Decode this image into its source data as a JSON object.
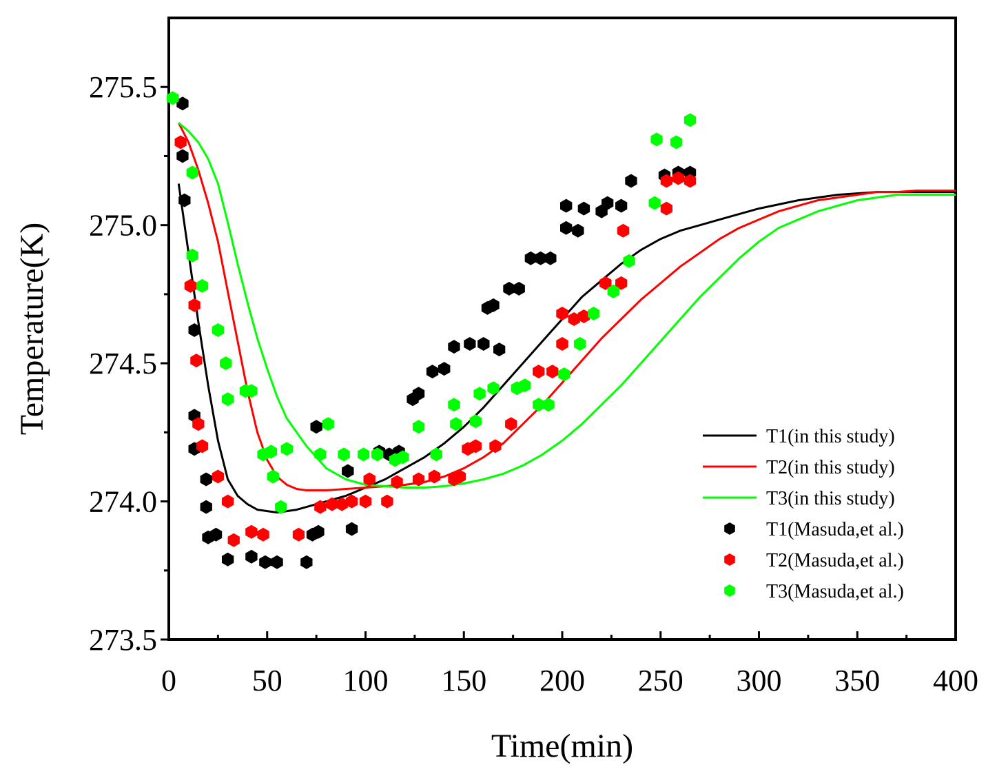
{
  "chart_data": {
    "type": "scatter",
    "title": "",
    "xlabel": "Time(min)",
    "ylabel": "Temperature(K)",
    "xlim": [
      0,
      400
    ],
    "ylim": [
      273.5,
      275.75
    ],
    "xticks": [
      0,
      50,
      100,
      150,
      200,
      250,
      300,
      350,
      400
    ],
    "xtick_labels": [
      "0",
      "50",
      "100",
      "150",
      "200",
      "250",
      "300",
      "350",
      "400"
    ],
    "yticks": [
      273.5,
      274.0,
      274.5,
      275.0,
      275.5
    ],
    "ytick_labels": [
      "273.5",
      "274.0",
      "274.5",
      "275.0",
      "275.5"
    ],
    "grid": false,
    "legend_position": "bottom-right",
    "colors": {
      "T1": "#000000",
      "T2": "#ff0000",
      "T3": "#00ff00"
    },
    "lines": [
      {
        "name": "T1(in this study)",
        "color": "#000000",
        "x": [
          5,
          10,
          15,
          20,
          25,
          30,
          35,
          40,
          45,
          50,
          55,
          60,
          65,
          70,
          80,
          90,
          100,
          110,
          120,
          130,
          140,
          150,
          160,
          170,
          180,
          190,
          200,
          210,
          220,
          230,
          240,
          250,
          260,
          270,
          280,
          290,
          300,
          310,
          320,
          330,
          340,
          350,
          360,
          370,
          380,
          390,
          400
        ],
        "y": [
          275.15,
          274.9,
          274.65,
          274.42,
          274.22,
          274.08,
          274.02,
          273.99,
          273.97,
          273.965,
          273.96,
          273.965,
          273.97,
          273.98,
          274.0,
          274.02,
          274.05,
          274.08,
          274.12,
          274.16,
          274.21,
          274.27,
          274.34,
          274.42,
          274.5,
          274.58,
          274.66,
          274.74,
          274.8,
          274.86,
          274.91,
          274.95,
          274.98,
          275.0,
          275.02,
          275.04,
          275.06,
          275.075,
          275.09,
          275.1,
          275.11,
          275.115,
          275.12,
          275.12,
          275.12,
          275.12,
          275.12
        ]
      },
      {
        "name": "T2(in this study)",
        "color": "#ff0000",
        "x": [
          5,
          10,
          15,
          20,
          25,
          30,
          35,
          40,
          45,
          50,
          55,
          60,
          65,
          70,
          80,
          90,
          100,
          110,
          120,
          130,
          140,
          150,
          160,
          170,
          180,
          190,
          200,
          210,
          220,
          230,
          240,
          250,
          260,
          270,
          280,
          290,
          300,
          310,
          320,
          330,
          340,
          350,
          360,
          370,
          380,
          390,
          400
        ],
        "y": [
          275.37,
          275.3,
          275.2,
          275.08,
          274.94,
          274.76,
          274.58,
          274.4,
          274.25,
          274.15,
          274.09,
          274.06,
          274.045,
          274.04,
          274.04,
          274.045,
          274.05,
          274.055,
          274.06,
          274.07,
          274.09,
          274.12,
          274.16,
          274.21,
          274.28,
          274.35,
          274.43,
          274.51,
          274.59,
          274.66,
          274.73,
          274.79,
          274.85,
          274.9,
          274.95,
          274.99,
          275.02,
          275.05,
          275.07,
          275.09,
          275.1,
          275.11,
          275.12,
          275.12,
          275.125,
          275.125,
          275.125
        ]
      },
      {
        "name": "T3(in this study)",
        "color": "#00ff00",
        "x": [
          5,
          10,
          15,
          20,
          25,
          30,
          35,
          40,
          45,
          50,
          55,
          60,
          70,
          80,
          90,
          100,
          110,
          120,
          130,
          140,
          150,
          160,
          170,
          180,
          190,
          200,
          210,
          220,
          230,
          240,
          250,
          260,
          270,
          280,
          290,
          300,
          310,
          320,
          330,
          340,
          350,
          360,
          370,
          380,
          390,
          400
        ],
        "y": [
          275.37,
          275.34,
          275.3,
          275.24,
          275.15,
          275.01,
          274.86,
          274.72,
          274.59,
          274.48,
          274.38,
          274.3,
          274.2,
          274.12,
          274.08,
          274.06,
          274.055,
          274.05,
          274.05,
          274.055,
          274.065,
          274.08,
          274.1,
          274.13,
          274.17,
          274.22,
          274.28,
          274.35,
          274.42,
          274.5,
          274.58,
          274.66,
          274.74,
          274.81,
          274.88,
          274.94,
          274.99,
          275.02,
          275.05,
          275.07,
          275.09,
          275.1,
          275.11,
          275.11,
          275.11,
          275.11
        ]
      }
    ],
    "scatter": [
      {
        "name": "T1(Masuda,et al.)",
        "color": "#000000",
        "x": [
          7,
          7,
          8,
          13,
          13,
          13,
          19,
          19,
          20,
          24,
          30,
          42,
          49,
          55,
          70,
          73,
          76,
          75,
          91,
          93,
          107,
          112,
          117,
          124,
          127,
          134,
          140,
          145,
          153,
          160,
          162,
          165,
          168,
          173,
          178,
          184,
          189,
          194,
          202,
          202,
          208,
          211,
          220,
          223,
          230,
          235,
          252,
          259,
          265
        ],
        "y": [
          275.44,
          275.25,
          275.09,
          274.62,
          274.31,
          274.19,
          274.08,
          273.98,
          273.87,
          273.88,
          273.79,
          273.8,
          273.78,
          273.78,
          273.78,
          273.88,
          273.89,
          274.27,
          274.11,
          273.9,
          274.18,
          274.17,
          274.18,
          274.37,
          274.39,
          274.47,
          274.48,
          274.56,
          274.57,
          274.57,
          274.7,
          274.71,
          274.55,
          274.77,
          274.77,
          274.88,
          274.88,
          274.88,
          275.07,
          274.99,
          274.98,
          275.06,
          275.05,
          275.08,
          275.07,
          275.16,
          275.18,
          275.19,
          275.19
        ]
      },
      {
        "name": "T2(Masuda,et al.)",
        "color": "#ff0000",
        "x": [
          6,
          11,
          13,
          14,
          15,
          17,
          25,
          30,
          33,
          42,
          48,
          66,
          77,
          83,
          88,
          93,
          100,
          102,
          111,
          116,
          127,
          135,
          145,
          148,
          152,
          156,
          166,
          174,
          188,
          195,
          200,
          200,
          206,
          211,
          222,
          230,
          231,
          253,
          253,
          259,
          265
        ],
        "y": [
          275.3,
          274.78,
          274.71,
          274.51,
          274.28,
          274.2,
          274.09,
          274.0,
          273.86,
          273.89,
          273.88,
          273.88,
          273.98,
          273.99,
          273.99,
          274.0,
          274.0,
          274.08,
          274.0,
          274.07,
          274.08,
          274.09,
          274.08,
          274.09,
          274.19,
          274.2,
          274.2,
          274.28,
          274.47,
          274.47,
          274.57,
          274.68,
          274.66,
          274.67,
          274.79,
          274.79,
          274.98,
          275.06,
          275.16,
          275.17,
          275.16
        ]
      },
      {
        "name": "T3(Masuda,et al.)",
        "color": "#00ff00",
        "x": [
          2,
          12,
          12,
          17,
          25,
          29,
          30,
          39,
          42,
          48,
          52,
          53,
          57,
          60,
          77,
          81,
          89,
          99,
          106,
          115,
          119,
          127,
          136,
          145,
          146,
          156,
          158,
          165,
          177,
          181,
          188,
          193,
          201,
          209,
          216,
          226,
          234,
          247,
          248,
          258,
          265
        ],
        "y": [
          275.46,
          275.19,
          274.89,
          274.78,
          274.62,
          274.5,
          274.37,
          274.4,
          274.4,
          274.17,
          274.18,
          274.09,
          273.98,
          274.19,
          274.17,
          274.28,
          274.17,
          274.17,
          274.17,
          274.15,
          274.16,
          274.27,
          274.17,
          274.35,
          274.28,
          274.29,
          274.39,
          274.41,
          274.41,
          274.42,
          274.35,
          274.35,
          274.46,
          274.57,
          274.68,
          274.76,
          274.87,
          275.08,
          275.31,
          275.3,
          275.38
        ]
      }
    ]
  }
}
